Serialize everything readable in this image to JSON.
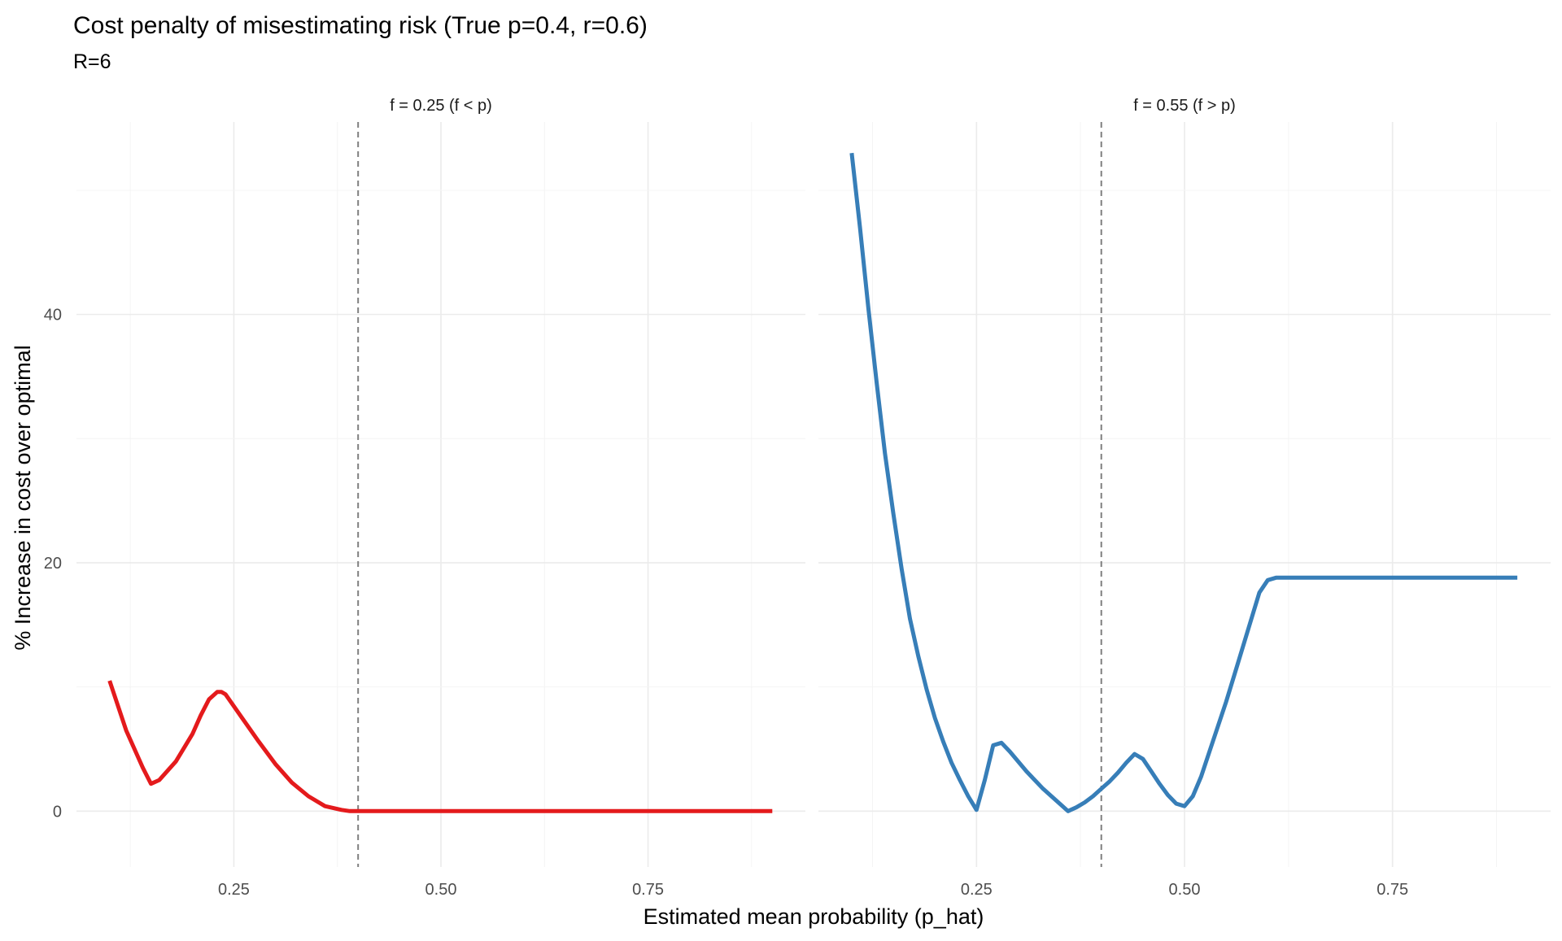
{
  "title": "Cost penalty of misestimating risk (True p=0.4, r=0.6)",
  "subtitle": "R=6",
  "xlabel": "Estimated mean probability (p_hat)",
  "ylabel": "% Increase in cost over optimal",
  "chart_data": [
    {
      "type": "line",
      "facet_label": "f = 0.25 (f < p)",
      "color": "#E41A1C",
      "xlim": [
        0.06,
        0.94
      ],
      "ylim": [
        -4.5,
        55.5
      ],
      "x_ticks": [
        0.25,
        0.5,
        0.75
      ],
      "x_tick_labels": [
        "0.25",
        "0.50",
        "0.75"
      ],
      "y_ticks": [
        0,
        20,
        40
      ],
      "y_tick_labels": [
        "0",
        "20",
        "40"
      ],
      "grid": true,
      "vline_x": 0.4,
      "series": [
        {
          "x": [
            0.1,
            0.12,
            0.14,
            0.15,
            0.16,
            0.18,
            0.2,
            0.21,
            0.22,
            0.23,
            0.235,
            0.24,
            0.26,
            0.28,
            0.3,
            0.32,
            0.34,
            0.36,
            0.38,
            0.39,
            0.4,
            0.45,
            0.5,
            0.6,
            0.7,
            0.8,
            0.9
          ],
          "y": [
            10.5,
            6.5,
            3.5,
            2.2,
            2.5,
            4.0,
            6.2,
            7.7,
            9.0,
            9.6,
            9.6,
            9.4,
            7.5,
            5.6,
            3.8,
            2.3,
            1.2,
            0.4,
            0.1,
            0.0,
            0.0,
            0.0,
            0.0,
            0.0,
            0.0,
            0.0,
            0.0
          ]
        }
      ]
    },
    {
      "type": "line",
      "facet_label": "f = 0.55 (f > p)",
      "color": "#377EB8",
      "xlim": [
        0.06,
        0.94
      ],
      "ylim": [
        -4.5,
        55.5
      ],
      "x_ticks": [
        0.25,
        0.5,
        0.75
      ],
      "x_tick_labels": [
        "0.25",
        "0.50",
        "0.75"
      ],
      "y_ticks": [
        0,
        20,
        40
      ],
      "y_tick_labels": [
        "0",
        "20",
        "40"
      ],
      "grid": true,
      "vline_x": 0.4,
      "series": [
        {
          "x": [
            0.1,
            0.11,
            0.12,
            0.13,
            0.14,
            0.15,
            0.16,
            0.17,
            0.18,
            0.19,
            0.2,
            0.21,
            0.22,
            0.23,
            0.24,
            0.25,
            0.26,
            0.27,
            0.28,
            0.29,
            0.3,
            0.31,
            0.32,
            0.33,
            0.34,
            0.35,
            0.36,
            0.37,
            0.38,
            0.39,
            0.4,
            0.41,
            0.42,
            0.43,
            0.44,
            0.45,
            0.46,
            0.47,
            0.48,
            0.49,
            0.5,
            0.51,
            0.52,
            0.53,
            0.54,
            0.55,
            0.56,
            0.57,
            0.58,
            0.59,
            0.6,
            0.61,
            0.7,
            0.8,
            0.9
          ],
          "y": [
            53.0,
            47.0,
            40.5,
            34.5,
            28.8,
            24.0,
            19.5,
            15.5,
            12.5,
            9.8,
            7.5,
            5.6,
            3.9,
            2.5,
            1.2,
            0.1,
            2.5,
            5.3,
            5.5,
            4.8,
            4.0,
            3.2,
            2.5,
            1.8,
            1.2,
            0.6,
            0.0,
            0.3,
            0.7,
            1.2,
            1.8,
            2.4,
            3.1,
            3.9,
            4.6,
            4.2,
            3.2,
            2.2,
            1.3,
            0.6,
            0.4,
            1.2,
            2.8,
            4.8,
            6.8,
            8.8,
            11.0,
            13.2,
            15.4,
            17.6,
            18.6,
            18.8,
            18.8,
            18.8,
            18.8
          ]
        }
      ]
    }
  ]
}
